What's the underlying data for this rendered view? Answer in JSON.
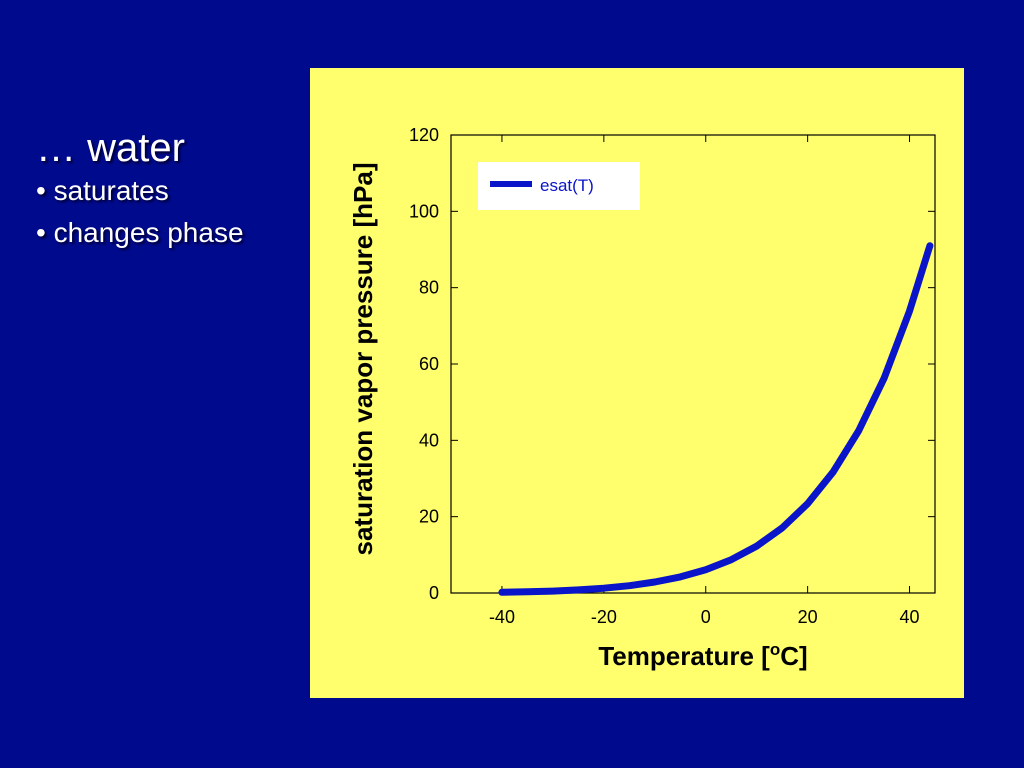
{
  "slide": {
    "title": "… water",
    "bullets": [
      "• saturates",
      "• changes phase"
    ],
    "background_color": "#000a8c",
    "text_color": "#ffffff"
  },
  "chart_data": {
    "type": "line",
    "title": "",
    "xlabel": "Temperature [",
    "xlabel_superscript": "o",
    "xlabel_suffix": "C]",
    "ylabel": "saturation vapor pressure [hPa]",
    "xlim": [
      -50,
      45
    ],
    "ylim": [
      0,
      120
    ],
    "x_ticks": [
      "-40",
      "-20",
      "0",
      "20",
      "40"
    ],
    "x_tick_values": [
      -40,
      -20,
      0,
      20,
      40
    ],
    "y_ticks": [
      "0",
      "20",
      "40",
      "60",
      "80",
      "100",
      "120"
    ],
    "y_tick_values": [
      0,
      20,
      40,
      60,
      80,
      100,
      120
    ],
    "grid": false,
    "legend_position": "top-left",
    "panel_color": "#ffff6e",
    "series": [
      {
        "name": "esat(T)",
        "color": "#0a14c8",
        "x": [
          -40,
          -35,
          -30,
          -25,
          -20,
          -15,
          -10,
          -5,
          0,
          5,
          10,
          15,
          20,
          25,
          30,
          35,
          40,
          44
        ],
        "y": [
          0.19,
          0.31,
          0.51,
          0.81,
          1.26,
          1.92,
          2.87,
          4.22,
          6.11,
          8.72,
          12.28,
          17.05,
          23.39,
          31.69,
          42.46,
          56.29,
          73.85,
          91.0
        ]
      }
    ]
  }
}
